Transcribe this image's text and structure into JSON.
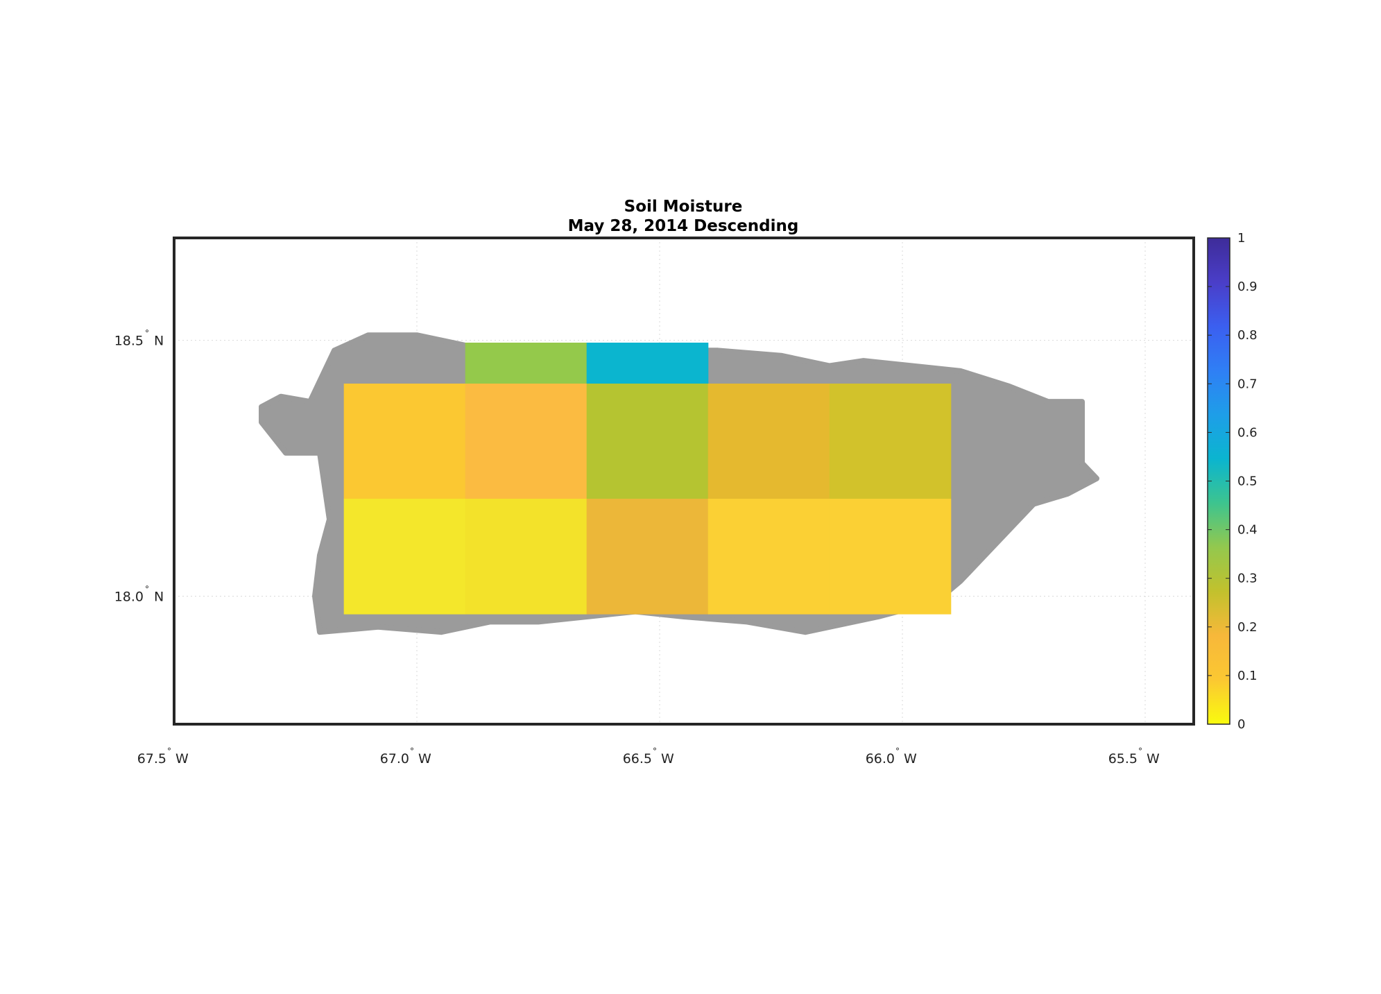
{
  "title": {
    "line1": "Soil Moisture",
    "line2": "May 28, 2014 Descending"
  },
  "map": {
    "lon_range": [
      -67.5,
      -65.4
    ],
    "lat_range": [
      17.75,
      18.7
    ],
    "x_ticks": [
      {
        "value": -67.5,
        "num": "67.5",
        "deg": "°",
        "dir": "W"
      },
      {
        "value": -67.0,
        "num": "67.0",
        "deg": "°",
        "dir": "W"
      },
      {
        "value": -66.5,
        "num": "66.5",
        "deg": "°",
        "dir": "W"
      },
      {
        "value": -66.0,
        "num": "66.0",
        "deg": "°",
        "dir": "W"
      },
      {
        "value": -65.5,
        "num": "65.5",
        "deg": "°",
        "dir": "W"
      }
    ],
    "y_ticks": [
      {
        "value": 18.5,
        "num": "18.5",
        "deg": "°",
        "dir": "N"
      },
      {
        "value": 18.0,
        "num": "18.0",
        "deg": "°",
        "dir": "N"
      }
    ],
    "grid": true,
    "land_color": "#9b9b9b",
    "island_outline": [
      [
        -67.32,
        18.37
      ],
      [
        -67.28,
        18.39
      ],
      [
        -67.22,
        18.38
      ],
      [
        -67.2,
        18.42
      ],
      [
        -67.17,
        18.48
      ],
      [
        -67.1,
        18.51
      ],
      [
        -67.0,
        18.51
      ],
      [
        -66.9,
        18.49
      ],
      [
        -66.8,
        18.49
      ],
      [
        -66.7,
        18.49
      ],
      [
        -66.6,
        18.49
      ],
      [
        -66.5,
        18.48
      ],
      [
        -66.38,
        18.48
      ],
      [
        -66.25,
        18.47
      ],
      [
        -66.15,
        18.45
      ],
      [
        -66.08,
        18.46
      ],
      [
        -65.98,
        18.45
      ],
      [
        -65.88,
        18.44
      ],
      [
        -65.78,
        18.41
      ],
      [
        -65.7,
        18.38
      ],
      [
        -65.63,
        18.38
      ],
      [
        -65.63,
        18.26
      ],
      [
        -65.6,
        18.23
      ],
      [
        -65.66,
        18.2
      ],
      [
        -65.73,
        18.18
      ],
      [
        -65.78,
        18.13
      ],
      [
        -65.84,
        18.07
      ],
      [
        -65.88,
        18.03
      ],
      [
        -65.93,
        17.99
      ],
      [
        -66.05,
        17.96
      ],
      [
        -66.2,
        17.93
      ],
      [
        -66.32,
        17.95
      ],
      [
        -66.45,
        17.96
      ],
      [
        -66.55,
        17.97
      ],
      [
        -66.65,
        17.96
      ],
      [
        -66.75,
        17.95
      ],
      [
        -66.85,
        17.95
      ],
      [
        -66.95,
        17.93
      ],
      [
        -67.08,
        17.94
      ],
      [
        -67.2,
        17.93
      ],
      [
        -67.21,
        18.0
      ],
      [
        -67.2,
        18.08
      ],
      [
        -67.18,
        18.15
      ],
      [
        -67.2,
        18.28
      ],
      [
        -67.27,
        18.28
      ],
      [
        -67.32,
        18.34
      ]
    ]
  },
  "chart_data": {
    "type": "heatmap",
    "title": "Soil Moisture\nMay 28, 2014 Descending",
    "x_range": [
      -67.5,
      -65.4
    ],
    "y_range": [
      17.75,
      18.7
    ],
    "colorbar_range": [
      0,
      1
    ],
    "cells": [
      {
        "lon0": -66.9,
        "lon1": -66.65,
        "lat0": 18.415,
        "lat1": 18.495,
        "value": 0.35,
        "color": "#94c94b"
      },
      {
        "lon0": -66.65,
        "lon1": -66.4,
        "lat0": 18.415,
        "lat1": 18.495,
        "value": 0.53,
        "color": "#0bb5cf"
      },
      {
        "lon0": -67.15,
        "lon1": -66.9,
        "lat0": 18.19,
        "lat1": 18.415,
        "value": 0.13,
        "color": "#fbc832"
      },
      {
        "lon0": -66.9,
        "lon1": -66.65,
        "lat0": 18.19,
        "lat1": 18.415,
        "value": 0.18,
        "color": "#fbbb41"
      },
      {
        "lon0": -66.65,
        "lon1": -66.4,
        "lat0": 18.19,
        "lat1": 18.415,
        "value": 0.3,
        "color": "#b5c431"
      },
      {
        "lon0": -66.4,
        "lon1": -66.15,
        "lat0": 18.19,
        "lat1": 18.415,
        "value": 0.21,
        "color": "#e5b92f"
      },
      {
        "lon0": -66.15,
        "lon1": -65.9,
        "lat0": 18.19,
        "lat1": 18.415,
        "value": 0.26,
        "color": "#d2c22b"
      },
      {
        "lon0": -67.15,
        "lon1": -66.9,
        "lat0": 17.965,
        "lat1": 18.19,
        "value": 0.03,
        "color": "#f4e72b"
      },
      {
        "lon0": -66.9,
        "lon1": -66.65,
        "lat0": 17.965,
        "lat1": 18.19,
        "value": 0.05,
        "color": "#f3e22a"
      },
      {
        "lon0": -66.65,
        "lon1": -66.4,
        "lat0": 17.965,
        "lat1": 18.19,
        "value": 0.19,
        "color": "#ecb739"
      },
      {
        "lon0": -66.4,
        "lon1": -66.15,
        "lat0": 17.965,
        "lat1": 18.19,
        "value": 0.11,
        "color": "#fbd034"
      },
      {
        "lon0": -66.15,
        "lon1": -65.9,
        "lat0": 17.965,
        "lat1": 18.19,
        "value": 0.11,
        "color": "#fbd034"
      }
    ]
  },
  "colorbar": {
    "ticks": [
      "0",
      "0.1",
      "0.2",
      "0.3",
      "0.4",
      "0.5",
      "0.6",
      "0.7",
      "0.8",
      "0.9",
      "1"
    ],
    "stops": [
      "#f9fb0e",
      "#fbc832",
      "#f7b83a",
      "#c2c12d",
      "#93c84e",
      "#3dc48f",
      "#0bb5cf",
      "#1e9ee8",
      "#2f7ff5",
      "#3b5ff0",
      "#4a3ec8",
      "#3e2c99"
    ]
  }
}
